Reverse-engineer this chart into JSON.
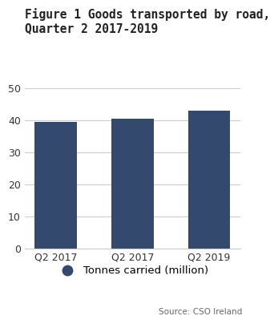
{
  "title": "Figure 1 Goods transported by road,\nQuarter 2 2017-2019",
  "categories": [
    "Q2 2017",
    "Q2 2017",
    "Q2 2019"
  ],
  "values": [
    39.5,
    40.4,
    43.0
  ],
  "bar_color": "#34496e",
  "ylim": [
    0,
    50
  ],
  "yticks": [
    0,
    10,
    20,
    30,
    40,
    50
  ],
  "legend_label": "Tonnes carried (million)",
  "legend_marker_color": "#34496e",
  "source_text": "Source: CSO Ireland",
  "background_color": "#ffffff",
  "title_fontsize": 10.5,
  "tick_fontsize": 9,
  "bar_width": 0.55
}
